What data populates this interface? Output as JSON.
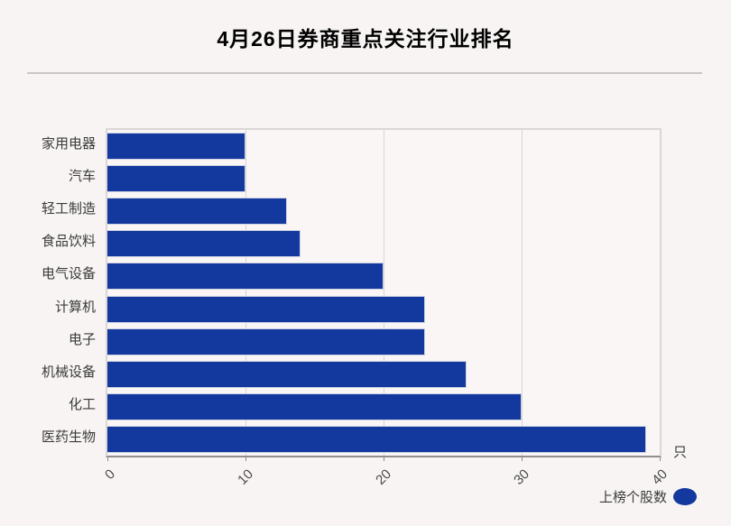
{
  "title": "4月26日券商重点关注行业排名",
  "axis": {
    "unit_label": "只"
  },
  "legend": {
    "label": "上榜个股数",
    "swatch_color": "#13389e"
  },
  "chart_data": {
    "type": "bar",
    "orientation": "horizontal",
    "title": "4月26日券商重点关注行业排名",
    "categories": [
      "家用电器",
      "汽车",
      "轻工制造",
      "食品饮料",
      "电气设备",
      "计算机",
      "电子",
      "机械设备",
      "化工",
      "医药生物"
    ],
    "values": [
      10,
      10,
      13,
      14,
      20,
      23,
      23,
      26,
      30,
      39
    ],
    "series_name": "上榜个股数",
    "unit": "只",
    "xlabel": "",
    "ylabel": "",
    "xlim": [
      0,
      40
    ],
    "xticks": [
      0,
      10,
      20,
      30,
      40
    ],
    "grid": true,
    "legend_position": "bottom-right",
    "bar_color": "#13389e",
    "background_color": "#f7f4f3"
  }
}
